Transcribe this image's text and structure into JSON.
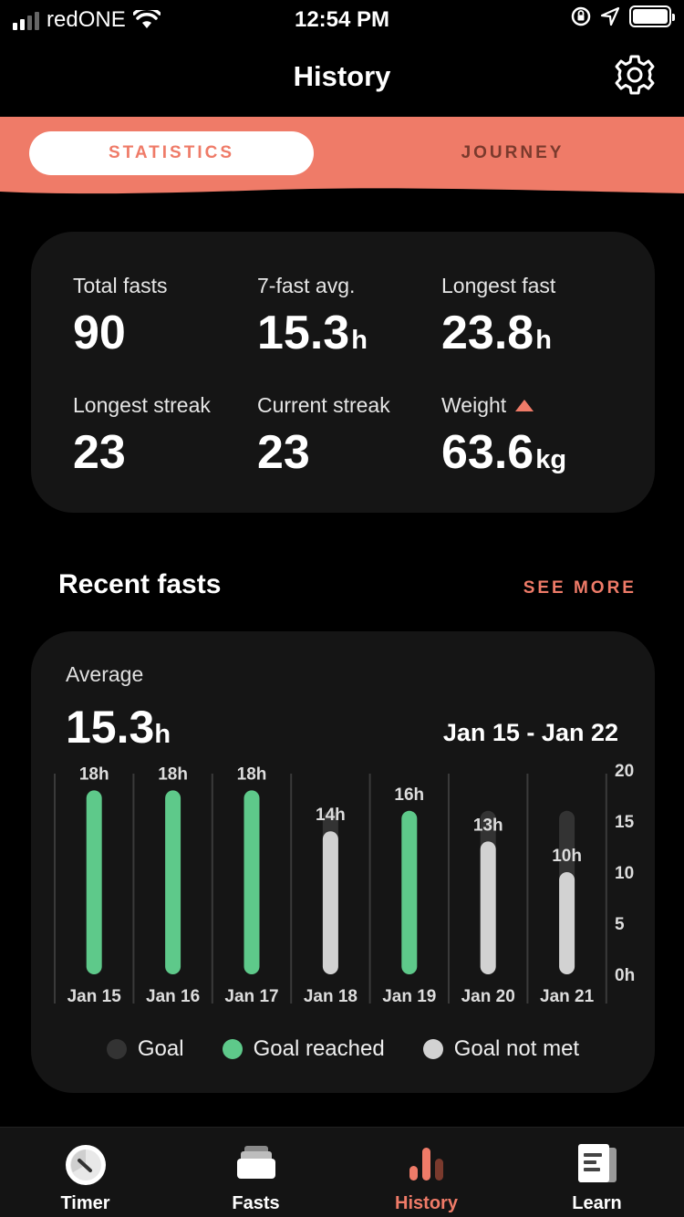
{
  "status_bar": {
    "carrier": "redONE",
    "time": "12:54 PM"
  },
  "header": {
    "title": "History"
  },
  "segments": {
    "active": "STATISTICS",
    "inactive": "JOURNEY"
  },
  "stats": [
    {
      "label": "Total fasts",
      "value": "90",
      "unit": ""
    },
    {
      "label": "7-fast avg.",
      "value": "15.3",
      "unit": "h"
    },
    {
      "label": "Longest fast",
      "value": "23.8",
      "unit": "h"
    },
    {
      "label": "Longest streak",
      "value": "23",
      "unit": ""
    },
    {
      "label": "Current streak",
      "value": "23",
      "unit": ""
    },
    {
      "label": "Weight",
      "value": "63.6",
      "unit": "kg",
      "trend": "up"
    }
  ],
  "recent": {
    "title": "Recent fasts",
    "see_more": "SEE MORE",
    "average_label": "Average",
    "average_value": "15.3",
    "average_unit": "h",
    "date_range": "Jan 15 - Jan 22"
  },
  "colors": {
    "accent": "#ef7b68",
    "goal_reached": "#5ec98a",
    "goal_not_met": "#d2d2d2",
    "goal": "#333333",
    "card_bg": "#151515"
  },
  "chart_data": {
    "type": "bar",
    "categories": [
      "Jan 15",
      "Jan 16",
      "Jan 17",
      "Jan 18",
      "Jan 19",
      "Jan 20",
      "Jan 21"
    ],
    "values": [
      18,
      18,
      18,
      14,
      16,
      13,
      10
    ],
    "goal_values": [
      16,
      16,
      16,
      16,
      16,
      16,
      16
    ],
    "status": [
      "reached",
      "reached",
      "reached",
      "not_met",
      "reached",
      "not_met",
      "not_met"
    ],
    "data_labels": [
      "18h",
      "18h",
      "18h",
      "14h",
      "16h",
      "13h",
      "10h"
    ],
    "y_ticks": [
      "20",
      "15",
      "10",
      "5",
      "0h"
    ],
    "ylim": [
      0,
      20
    ],
    "legend": [
      "Goal",
      "Goal reached",
      "Goal not met"
    ]
  },
  "tabbar": [
    "Timer",
    "Fasts",
    "History",
    "Learn"
  ]
}
